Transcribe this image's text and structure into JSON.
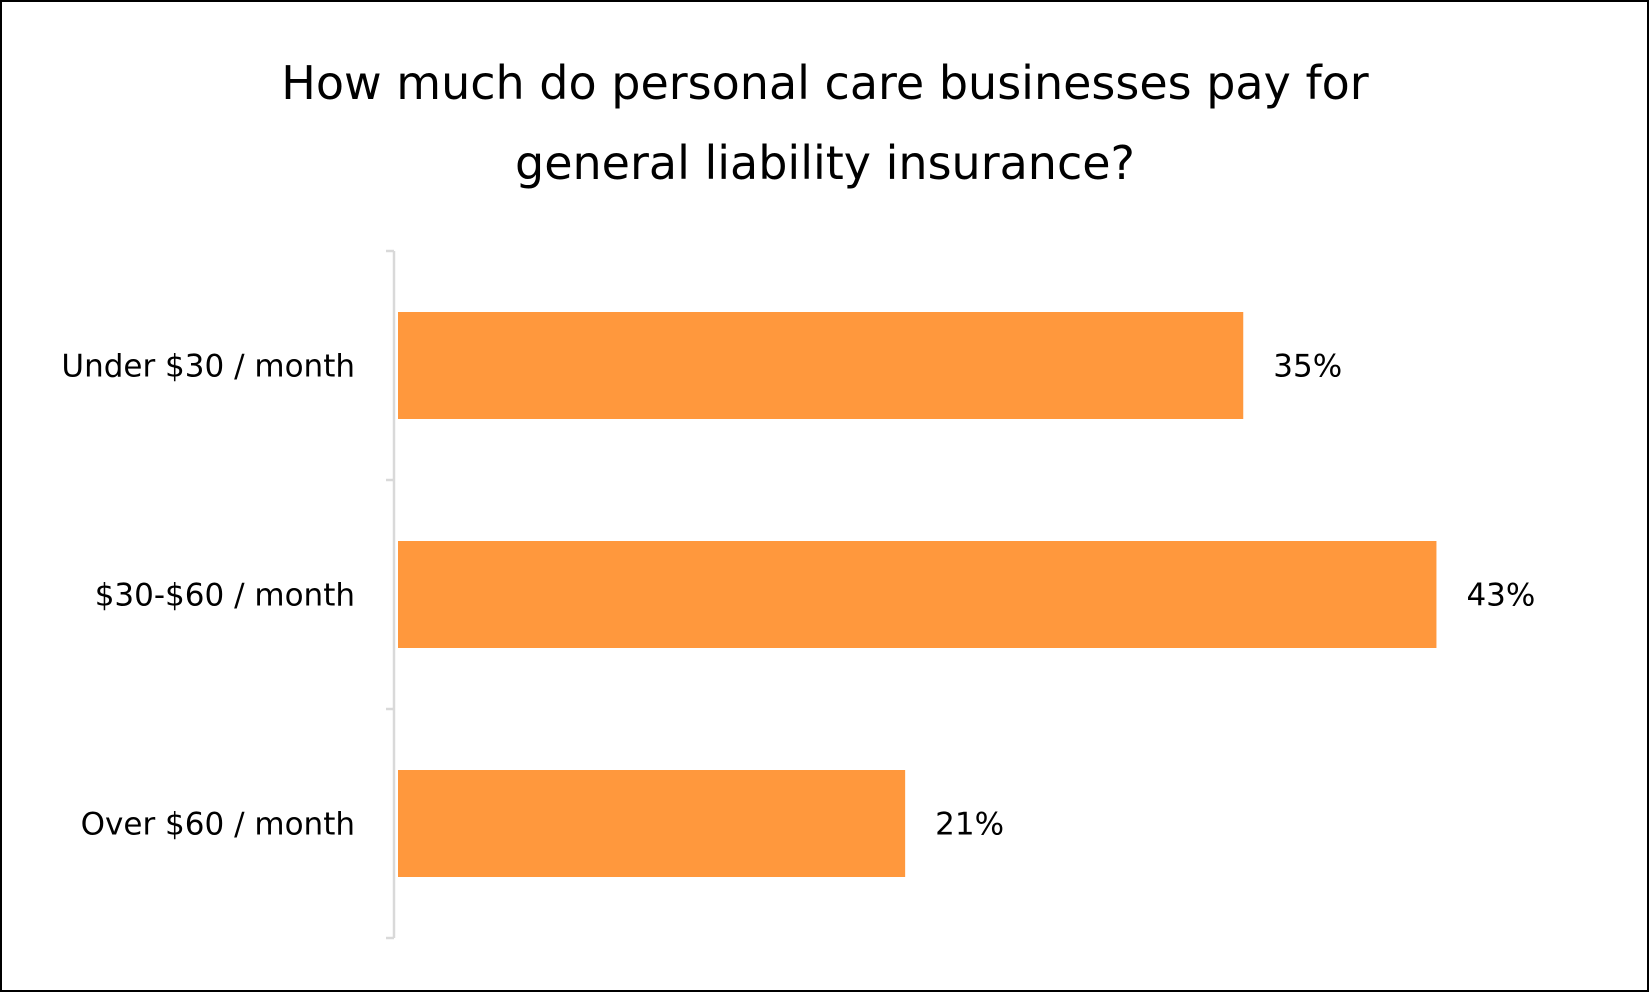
{
  "chart_data": {
    "type": "bar",
    "orientation": "horizontal",
    "title": "How much do personal care businesses pay for general liability insurance?",
    "title_lines": [
      "How much do personal care businesses pay for",
      "general liability insurance?"
    ],
    "categories": [
      "Under $30 / month",
      "$30-$60 / month",
      "Over $60 / month"
    ],
    "values": [
      35,
      43,
      21
    ],
    "value_labels": [
      "35%",
      "43%",
      "21%"
    ],
    "unit": "%",
    "xlabel": "",
    "ylabel": "",
    "grid": false,
    "legend": "none",
    "colors": {
      "bar": "#FF983D",
      "axis": "#D9D9D9"
    }
  }
}
